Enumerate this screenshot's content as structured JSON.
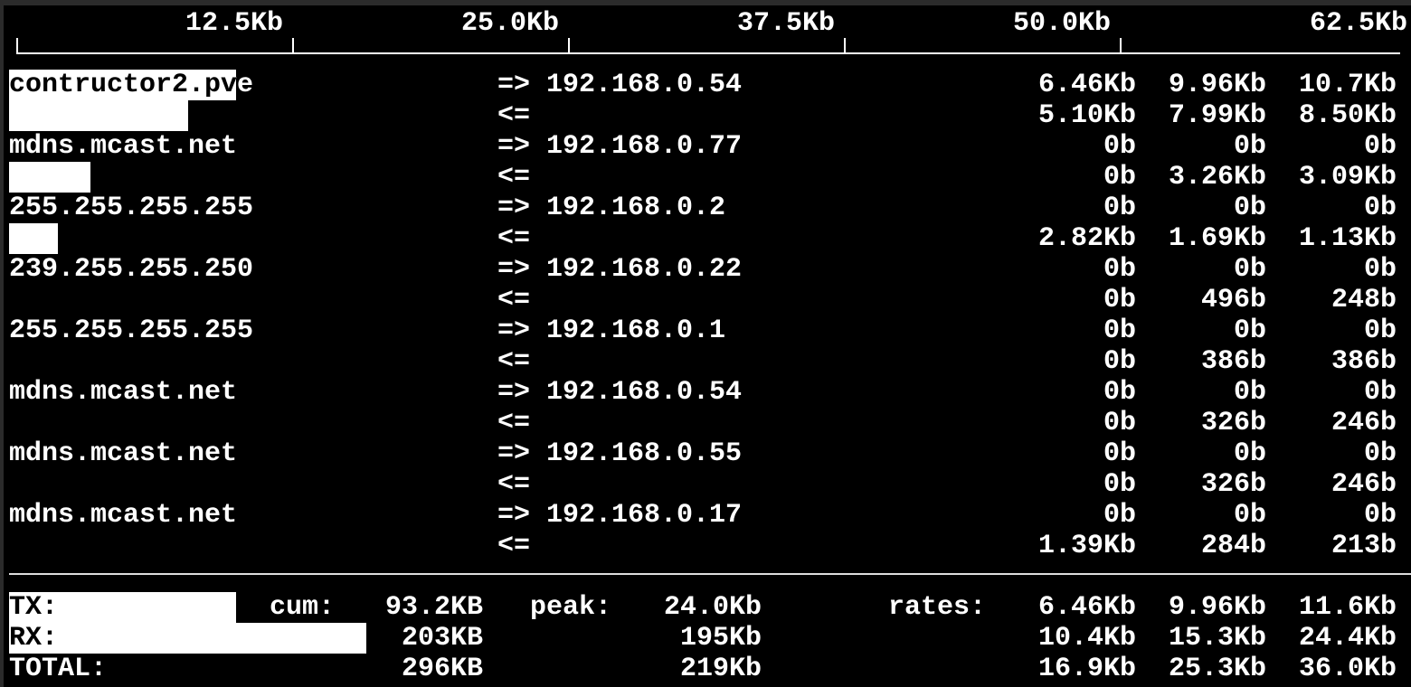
{
  "scale": {
    "unit_max_kb": 62.5,
    "labels": [
      "12.5Kb",
      "25.0Kb",
      "37.5Kb",
      "50.0Kb",
      "62.5Kb"
    ]
  },
  "connections": [
    {
      "host": "contructor2.pve",
      "peer": "192.168.0.54",
      "out": {
        "dir": "=>",
        "r2": "6.46Kb",
        "r10": "9.96Kb",
        "r40": "10.7Kb",
        "bar_kb": 10.3
      },
      "in": {
        "dir": "<=",
        "r2": "5.10Kb",
        "r10": "7.99Kb",
        "r40": "8.50Kb",
        "bar_kb": 8.1
      }
    },
    {
      "host": "mdns.mcast.net",
      "peer": "192.168.0.77",
      "out": {
        "dir": "=>",
        "r2": "0b",
        "r10": "0b",
        "r40": "0b",
        "bar_kb": 0
      },
      "in": {
        "dir": "<=",
        "r2": "0b",
        "r10": "3.26Kb",
        "r40": "3.09Kb",
        "bar_kb": 3.7
      }
    },
    {
      "host": "255.255.255.255",
      "peer": "192.168.0.2",
      "out": {
        "dir": "=>",
        "r2": "0b",
        "r10": "0b",
        "r40": "0b",
        "bar_kb": 0
      },
      "in": {
        "dir": "<=",
        "r2": "2.82Kb",
        "r10": "1.69Kb",
        "r40": "1.13Kb",
        "bar_kb": 2.2
      }
    },
    {
      "host": "239.255.255.250",
      "peer": "192.168.0.22",
      "out": {
        "dir": "=>",
        "r2": "0b",
        "r10": "0b",
        "r40": "0b",
        "bar_kb": 0
      },
      "in": {
        "dir": "<=",
        "r2": "0b",
        "r10": "496b",
        "r40": "248b",
        "bar_kb": 0
      }
    },
    {
      "host": "255.255.255.255",
      "peer": "192.168.0.1",
      "out": {
        "dir": "=>",
        "r2": "0b",
        "r10": "0b",
        "r40": "0b",
        "bar_kb": 0
      },
      "in": {
        "dir": "<=",
        "r2": "0b",
        "r10": "386b",
        "r40": "386b",
        "bar_kb": 0
      }
    },
    {
      "host": "mdns.mcast.net",
      "peer": "192.168.0.54",
      "out": {
        "dir": "=>",
        "r2": "0b",
        "r10": "0b",
        "r40": "0b",
        "bar_kb": 0
      },
      "in": {
        "dir": "<=",
        "r2": "0b",
        "r10": "326b",
        "r40": "246b",
        "bar_kb": 0
      }
    },
    {
      "host": "mdns.mcast.net",
      "peer": "192.168.0.55",
      "out": {
        "dir": "=>",
        "r2": "0b",
        "r10": "0b",
        "r40": "0b",
        "bar_kb": 0
      },
      "in": {
        "dir": "<=",
        "r2": "0b",
        "r10": "326b",
        "r40": "246b",
        "bar_kb": 0
      }
    },
    {
      "host": "mdns.mcast.net",
      "peer": "192.168.0.17",
      "out": {
        "dir": "=>",
        "r2": "0b",
        "r10": "0b",
        "r40": "0b",
        "bar_kb": 0
      },
      "in": {
        "dir": "<=",
        "r2": "1.39Kb",
        "r10": "284b",
        "r40": "213b",
        "bar_kb": 0
      }
    }
  ],
  "totals": {
    "cum_label": "cum:",
    "peak_label": "peak:",
    "rates_label": "rates:",
    "rows": [
      {
        "label": "TX:",
        "cum": "93.2KB",
        "peak": "24.0Kb",
        "r2": "6.46Kb",
        "r10": "9.96Kb",
        "r40": "11.6Kb",
        "bar_kb": 10.3
      },
      {
        "label": "RX:",
        "cum": "203KB",
        "peak": "195Kb",
        "r2": "10.4Kb",
        "r10": "15.3Kb",
        "r40": "24.4Kb",
        "bar_kb": 16.2
      },
      {
        "label": "TOTAL:",
        "cum": "296KB",
        "peak": "219Kb",
        "r2": "16.9Kb",
        "r10": "25.3Kb",
        "r40": "36.0Kb",
        "bar_kb": 0
      }
    ]
  }
}
